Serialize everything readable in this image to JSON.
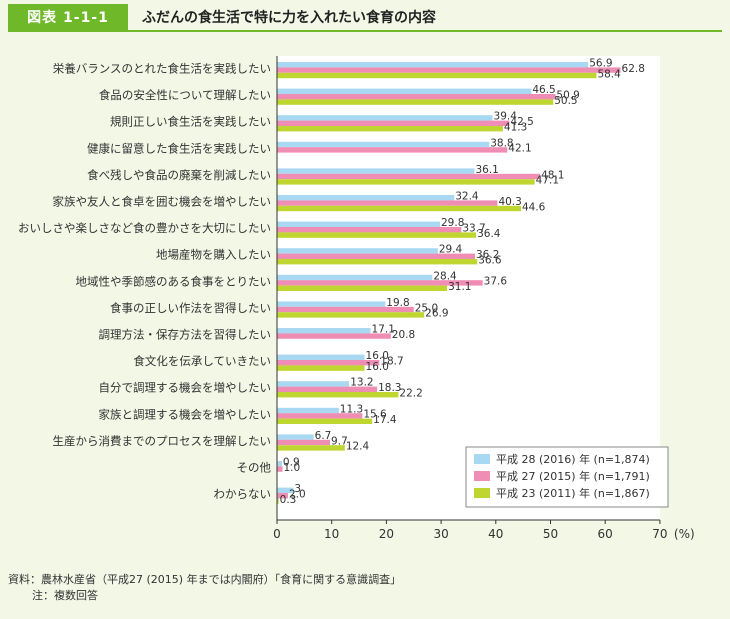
{
  "header": {
    "figure_label": "図表 1-1-1",
    "title": "ふだんの食生活で特に力を入れたい食育の内容"
  },
  "footer": {
    "source": "資料：農林水産省（平成27 (2015) 年までは内閣府）「食育に関する意識調査」",
    "note": "注：複数回答"
  },
  "colors": {
    "series_2016": "#a9d9f2",
    "series_2015": "#ef8db4",
    "series_2011": "#bfd630",
    "accent": "#6fb82a"
  },
  "chart_data": {
    "type": "bar",
    "orientation": "horizontal",
    "title": "ふだんの食生活で特に力を入れたい食育の内容",
    "xlabel": "(%)",
    "xlim": [
      0,
      70
    ],
    "xticks": [
      0,
      10,
      20,
      30,
      40,
      50,
      60,
      70
    ],
    "grid": false,
    "legend_position": "bottom-right",
    "categories": [
      "栄養バランスのとれた食生活を実践したい",
      "食品の安全性について理解したい",
      "規則正しい食生活を実践したい",
      "健康に留意した食生活を実践したい",
      "食べ残しや食品の廃棄を削減したい",
      "家族や友人と食卓を囲む機会を増やしたい",
      "おいしさや楽しさなど食の豊かさを大切にしたい",
      "地場産物を購入したい",
      "地域性や季節感のある食事をとりたい",
      "食事の正しい作法を習得したい",
      "調理方法・保存方法を習得したい",
      "食文化を伝承していきたい",
      "自分で調理する機会を増やしたい",
      "家族と調理する機会を増やしたい",
      "生産から消費までのプロセスを理解したい",
      "その他",
      "わからない"
    ],
    "series": [
      {
        "name": "平成 28 (2016) 年 (n=1,874)",
        "color": "#a9d9f2",
        "values": [
          56.9,
          46.5,
          39.4,
          38.8,
          36.1,
          32.4,
          29.8,
          29.4,
          28.4,
          19.8,
          17.1,
          16.0,
          13.2,
          11.3,
          6.7,
          0.9,
          3
        ],
        "labels": [
          "56.9",
          "46.5",
          "39.4",
          "38.8",
          "36.1",
          "32.4",
          "29.8",
          "29.4",
          "28.4",
          "19.8",
          "17.1",
          "16.0",
          "13.2",
          "11.3",
          "6.7",
          "0.9",
          "3"
        ]
      },
      {
        "name": "平成 27 (2015) 年 (n=1,791)",
        "color": "#ef8db4",
        "values": [
          62.8,
          50.9,
          42.5,
          42.1,
          48.1,
          40.3,
          33.7,
          36.2,
          37.6,
          25.0,
          20.8,
          18.7,
          18.3,
          15.6,
          9.7,
          1.0,
          2.0
        ],
        "labels": [
          "62.8",
          "50.9",
          "42.5",
          "42.1",
          "48.1",
          "40.3",
          "33.7",
          "36.2",
          "37.6",
          "25.0",
          "20.8",
          "18.7",
          "18.3",
          "15.6",
          "9.7",
          "1.0",
          "2.0"
        ]
      },
      {
        "name": "平成 23 (2011) 年 (n=1,867)",
        "color": "#bfd630",
        "values": [
          58.4,
          50.5,
          41.3,
          null,
          47.1,
          44.6,
          36.4,
          36.6,
          31.1,
          26.9,
          null,
          16.0,
          22.2,
          17.4,
          12.4,
          null,
          0.3
        ],
        "labels": [
          "58.4",
          "50.5",
          "41.3",
          "",
          "47.1",
          "44.6",
          "36.4",
          "36.6",
          "31.1",
          "26.9",
          "",
          "16.0",
          "22.2",
          "17.4",
          "12.4",
          "",
          "0.3"
        ]
      }
    ]
  }
}
